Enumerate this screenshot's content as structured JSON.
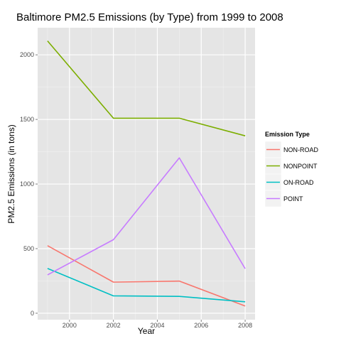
{
  "chart_data": {
    "type": "line",
    "title": "Baltimore PM2.5 Emissions (by Type) from 1999 to 2008",
    "xlabel": "Year",
    "ylabel": "PM2.5 Emissions (in tons)",
    "x": [
      1999,
      2002,
      2005,
      2008
    ],
    "xlim": [
      1998.55,
      2008.45
    ],
    "ylim": [
      -50,
      2210
    ],
    "xticks": [
      2000,
      2002,
      2004,
      2006,
      2008
    ],
    "yticks": [
      0,
      500,
      1000,
      1500,
      2000
    ],
    "grid": true,
    "legend": {
      "title": "Emission Type",
      "position": "right"
    },
    "series": [
      {
        "name": "NON-ROAD",
        "color": "#F8766D",
        "values": [
          522.9,
          240.8,
          248.9,
          55.8
        ]
      },
      {
        "name": "NONPOINT",
        "color": "#7CAE00",
        "values": [
          2107.6,
          1509.5,
          1509.5,
          1373.2
        ]
      },
      {
        "name": "ON-ROAD",
        "color": "#00BFC4",
        "values": [
          346.8,
          134.3,
          130.4,
          88.3
        ]
      },
      {
        "name": "POINT",
        "color": "#C77CFF",
        "values": [
          296.8,
          569.3,
          1202.5,
          344.98
        ]
      }
    ]
  }
}
